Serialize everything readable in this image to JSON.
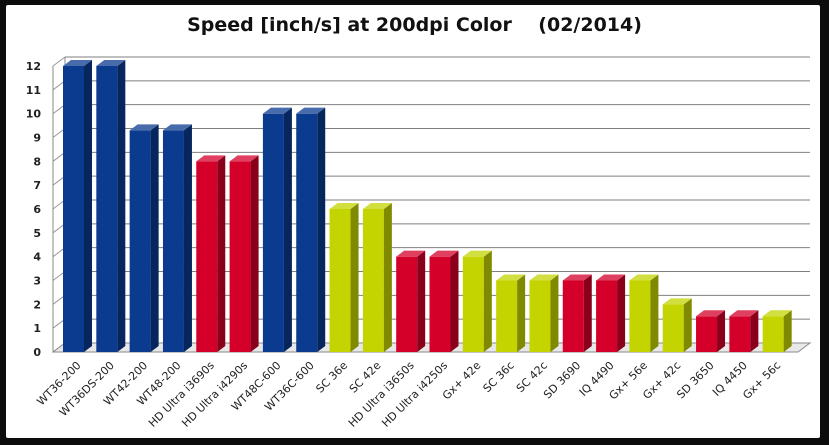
{
  "chart_data": {
    "type": "bar",
    "title": "Speed [inch/s] at 200dpi Color    (02/2014)",
    "xlabel": "",
    "ylabel": "",
    "ylim": [
      0,
      12
    ],
    "yticks": [
      "0",
      "1",
      "2",
      "3",
      "4",
      "5",
      "6",
      "7",
      "8",
      "9",
      "10",
      "11",
      "12"
    ],
    "grid": true,
    "legend": "none",
    "categories": [
      "WT36-200",
      "WT36DS-200",
      "WT42-200",
      "WT48-200",
      "HD Ultra i3690s",
      "HD Ultra i4290s",
      "WT48C-600",
      "WT36C-600",
      "SC 36e",
      "SC 42e",
      "HD Ultra i3650s",
      "HD Ultra i4250s",
      "Gx+ 42e",
      "SC 36c",
      "SC 42c",
      "SD 3690",
      "IQ 4490",
      "Gx+ 56e",
      "Gx+ 42c",
      "SD 3650",
      "IQ 4450",
      "Gx+ 56c"
    ],
    "values": [
      12,
      12,
      9.3,
      9.3,
      8,
      8,
      10,
      10,
      6,
      6,
      4,
      4,
      4,
      3,
      3,
      3,
      3,
      3,
      2,
      1.5,
      1.5,
      1.5
    ],
    "bar_colors": [
      "#0b3b8f",
      "#0b3b8f",
      "#0b3b8f",
      "#0b3b8f",
      "#d4002a",
      "#d4002a",
      "#0b3b8f",
      "#0b3b8f",
      "#c3d400",
      "#c3d400",
      "#d4002a",
      "#d4002a",
      "#c3d400",
      "#c3d400",
      "#c3d400",
      "#d4002a",
      "#d4002a",
      "#c3d400",
      "#c3d400",
      "#d4002a",
      "#d4002a",
      "#c3d400"
    ]
  }
}
